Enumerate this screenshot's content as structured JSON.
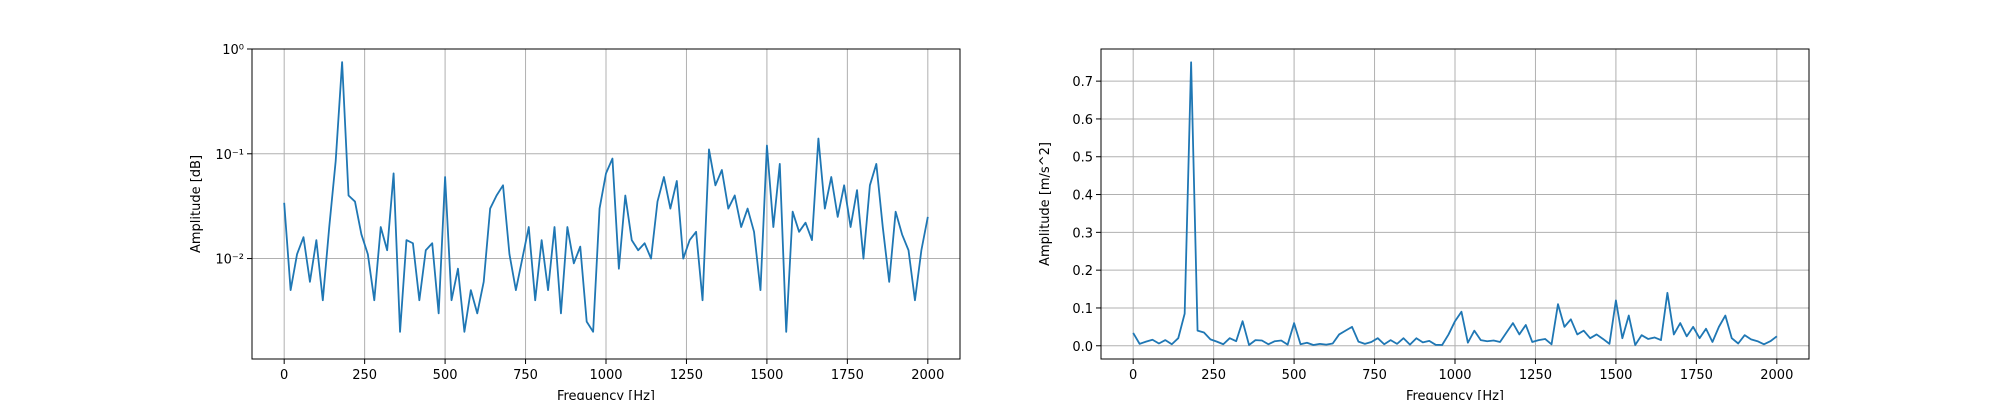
{
  "chart_data": [
    {
      "type": "line",
      "yscale": "log",
      "xlabel": "Frequency [Hz]",
      "ylabel": "Amplitude [dB]",
      "color": "#1f77b4",
      "grid": true,
      "x": [
        0,
        20,
        40,
        60,
        80,
        100,
        120,
        140,
        160,
        180,
        200,
        220,
        240,
        260,
        280,
        300,
        320,
        340,
        360,
        380,
        400,
        420,
        440,
        460,
        480,
        500,
        520,
        540,
        560,
        580,
        600,
        620,
        640,
        660,
        680,
        700,
        720,
        740,
        760,
        780,
        800,
        820,
        840,
        860,
        880,
        900,
        920,
        940,
        960,
        980,
        1000,
        1020,
        1040,
        1060,
        1080,
        1100,
        1120,
        1140,
        1160,
        1180,
        1200,
        1220,
        1240,
        1260,
        1280,
        1300,
        1320,
        1340,
        1360,
        1380,
        1400,
        1420,
        1440,
        1460,
        1480,
        1500,
        1520,
        1540,
        1560,
        1580,
        1600,
        1620,
        1640,
        1660,
        1680,
        1700,
        1720,
        1740,
        1760,
        1780,
        1800,
        1820,
        1840,
        1860,
        1880,
        1900,
        1920,
        1940,
        1960,
        1980,
        2000
      ],
      "values": [
        0.034,
        0.005,
        0.011,
        0.016,
        0.006,
        0.015,
        0.004,
        0.02,
        0.085,
        0.75,
        0.04,
        0.035,
        0.017,
        0.011,
        0.004,
        0.02,
        0.012,
        0.065,
        0.002,
        0.015,
        0.014,
        0.004,
        0.012,
        0.014,
        0.003,
        0.06,
        0.004,
        0.008,
        0.002,
        0.005,
        0.003,
        0.006,
        0.03,
        0.04,
        0.05,
        0.011,
        0.005,
        0.01,
        0.02,
        0.004,
        0.015,
        0.005,
        0.02,
        0.003,
        0.02,
        0.009,
        0.013,
        0.0025,
        0.002,
        0.03,
        0.065,
        0.09,
        0.008,
        0.04,
        0.015,
        0.012,
        0.014,
        0.01,
        0.035,
        0.06,
        0.03,
        0.055,
        0.01,
        0.015,
        0.018,
        0.004,
        0.11,
        0.05,
        0.07,
        0.03,
        0.04,
        0.02,
        0.03,
        0.018,
        0.005,
        0.12,
        0.02,
        0.08,
        0.002,
        0.028,
        0.018,
        0.022,
        0.015,
        0.14,
        0.03,
        0.06,
        0.025,
        0.05,
        0.02,
        0.045,
        0.01,
        0.05,
        0.08,
        0.02,
        0.006,
        0.028,
        0.017,
        0.012,
        0.004,
        0.012,
        0.025
      ],
      "xlim": [
        -100,
        2100
      ],
      "xticks": [
        0,
        250,
        500,
        750,
        1000,
        1250,
        1500,
        1750,
        2000
      ],
      "ylim": [
        0.0011,
        1
      ],
      "yticks": [
        {
          "value": 0.01,
          "label": "10⁻²"
        },
        {
          "value": 0.1,
          "label": "10⁻¹"
        },
        {
          "value": 1,
          "label": "10⁰"
        }
      ]
    },
    {
      "type": "line",
      "yscale": "linear",
      "xlabel": "Frequency [Hz]",
      "ylabel": "Amplitude [m/s^2]",
      "color": "#1f77b4",
      "grid": true,
      "x": [
        0,
        20,
        40,
        60,
        80,
        100,
        120,
        140,
        160,
        180,
        200,
        220,
        240,
        260,
        280,
        300,
        320,
        340,
        360,
        380,
        400,
        420,
        440,
        460,
        480,
        500,
        520,
        540,
        560,
        580,
        600,
        620,
        640,
        660,
        680,
        700,
        720,
        740,
        760,
        780,
        800,
        820,
        840,
        860,
        880,
        900,
        920,
        940,
        960,
        980,
        1000,
        1020,
        1040,
        1060,
        1080,
        1100,
        1120,
        1140,
        1160,
        1180,
        1200,
        1220,
        1240,
        1260,
        1280,
        1300,
        1320,
        1340,
        1360,
        1380,
        1400,
        1420,
        1440,
        1460,
        1480,
        1500,
        1520,
        1540,
        1560,
        1580,
        1600,
        1620,
        1640,
        1660,
        1680,
        1700,
        1720,
        1740,
        1760,
        1780,
        1800,
        1820,
        1840,
        1860,
        1880,
        1900,
        1920,
        1940,
        1960,
        1980,
        2000
      ],
      "values": [
        0.034,
        0.005,
        0.011,
        0.016,
        0.006,
        0.015,
        0.004,
        0.02,
        0.085,
        0.75,
        0.04,
        0.035,
        0.017,
        0.011,
        0.004,
        0.02,
        0.012,
        0.065,
        0.002,
        0.015,
        0.014,
        0.004,
        0.012,
        0.014,
        0.003,
        0.06,
        0.004,
        0.008,
        0.002,
        0.005,
        0.003,
        0.006,
        0.03,
        0.04,
        0.05,
        0.011,
        0.005,
        0.01,
        0.02,
        0.004,
        0.015,
        0.005,
        0.02,
        0.003,
        0.02,
        0.009,
        0.013,
        0.0025,
        0.002,
        0.03,
        0.065,
        0.09,
        0.008,
        0.04,
        0.015,
        0.012,
        0.014,
        0.01,
        0.035,
        0.06,
        0.03,
        0.055,
        0.01,
        0.015,
        0.018,
        0.004,
        0.11,
        0.05,
        0.07,
        0.03,
        0.04,
        0.02,
        0.03,
        0.018,
        0.005,
        0.12,
        0.02,
        0.08,
        0.002,
        0.028,
        0.018,
        0.022,
        0.015,
        0.14,
        0.03,
        0.06,
        0.025,
        0.05,
        0.02,
        0.045,
        0.01,
        0.05,
        0.08,
        0.02,
        0.006,
        0.028,
        0.017,
        0.012,
        0.004,
        0.012,
        0.025
      ],
      "xlim": [
        -100,
        2100
      ],
      "xticks": [
        0,
        250,
        500,
        750,
        1000,
        1250,
        1500,
        1750,
        2000
      ],
      "ylim": [
        -0.035,
        0.785
      ],
      "yticks": [
        {
          "value": 0,
          "label": "0.0"
        },
        0.1,
        0.2,
        0.3,
        0.4,
        0.5,
        0.6,
        0.7
      ]
    }
  ]
}
